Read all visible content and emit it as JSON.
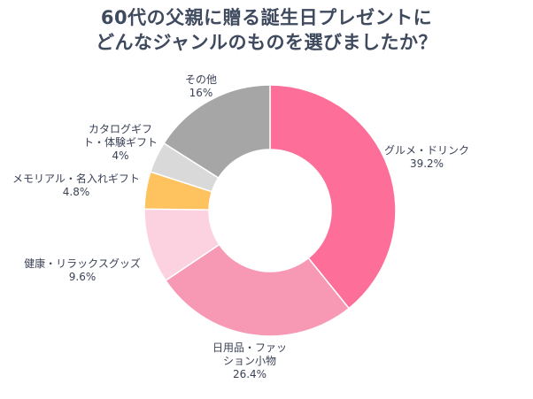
{
  "title_lines": [
    "60代の父親に贈る誕生日プレゼントに",
    "どんなジャンルのものを選びましたか？"
  ],
  "chart_data": {
    "type": "pie",
    "donut": true,
    "title": "60代の父親に贈る誕生日プレゼントに どんなジャンルのものを選びましたか？",
    "unit": "%",
    "slices": [
      {
        "label_lines": [
          "グルメ・ドリンク"
        ],
        "value": 39.2,
        "value_label": "39.2%",
        "color": "#fd6e98"
      },
      {
        "label_lines": [
          "日用品・ファッ",
          "ション小物"
        ],
        "value": 26.4,
        "value_label": "26.4%",
        "color": "#f799b4"
      },
      {
        "label_lines": [
          "健康・リラックスグッズ"
        ],
        "value": 9.6,
        "value_label": "9.6%",
        "color": "#fcd2e0"
      },
      {
        "label_lines": [
          "メモリアル・名入れギフト"
        ],
        "value": 4.8,
        "value_label": "4.8%",
        "color": "#fec25f"
      },
      {
        "label_lines": [
          "カタログギフ",
          "ト・体験ギフト"
        ],
        "value": 4,
        "value_label": "4%",
        "color": "#d9d9d9"
      },
      {
        "label_lines": [
          "その他"
        ],
        "value": 16,
        "value_label": "16%",
        "color": "#a6a6a6"
      }
    ],
    "legend": "none"
  }
}
